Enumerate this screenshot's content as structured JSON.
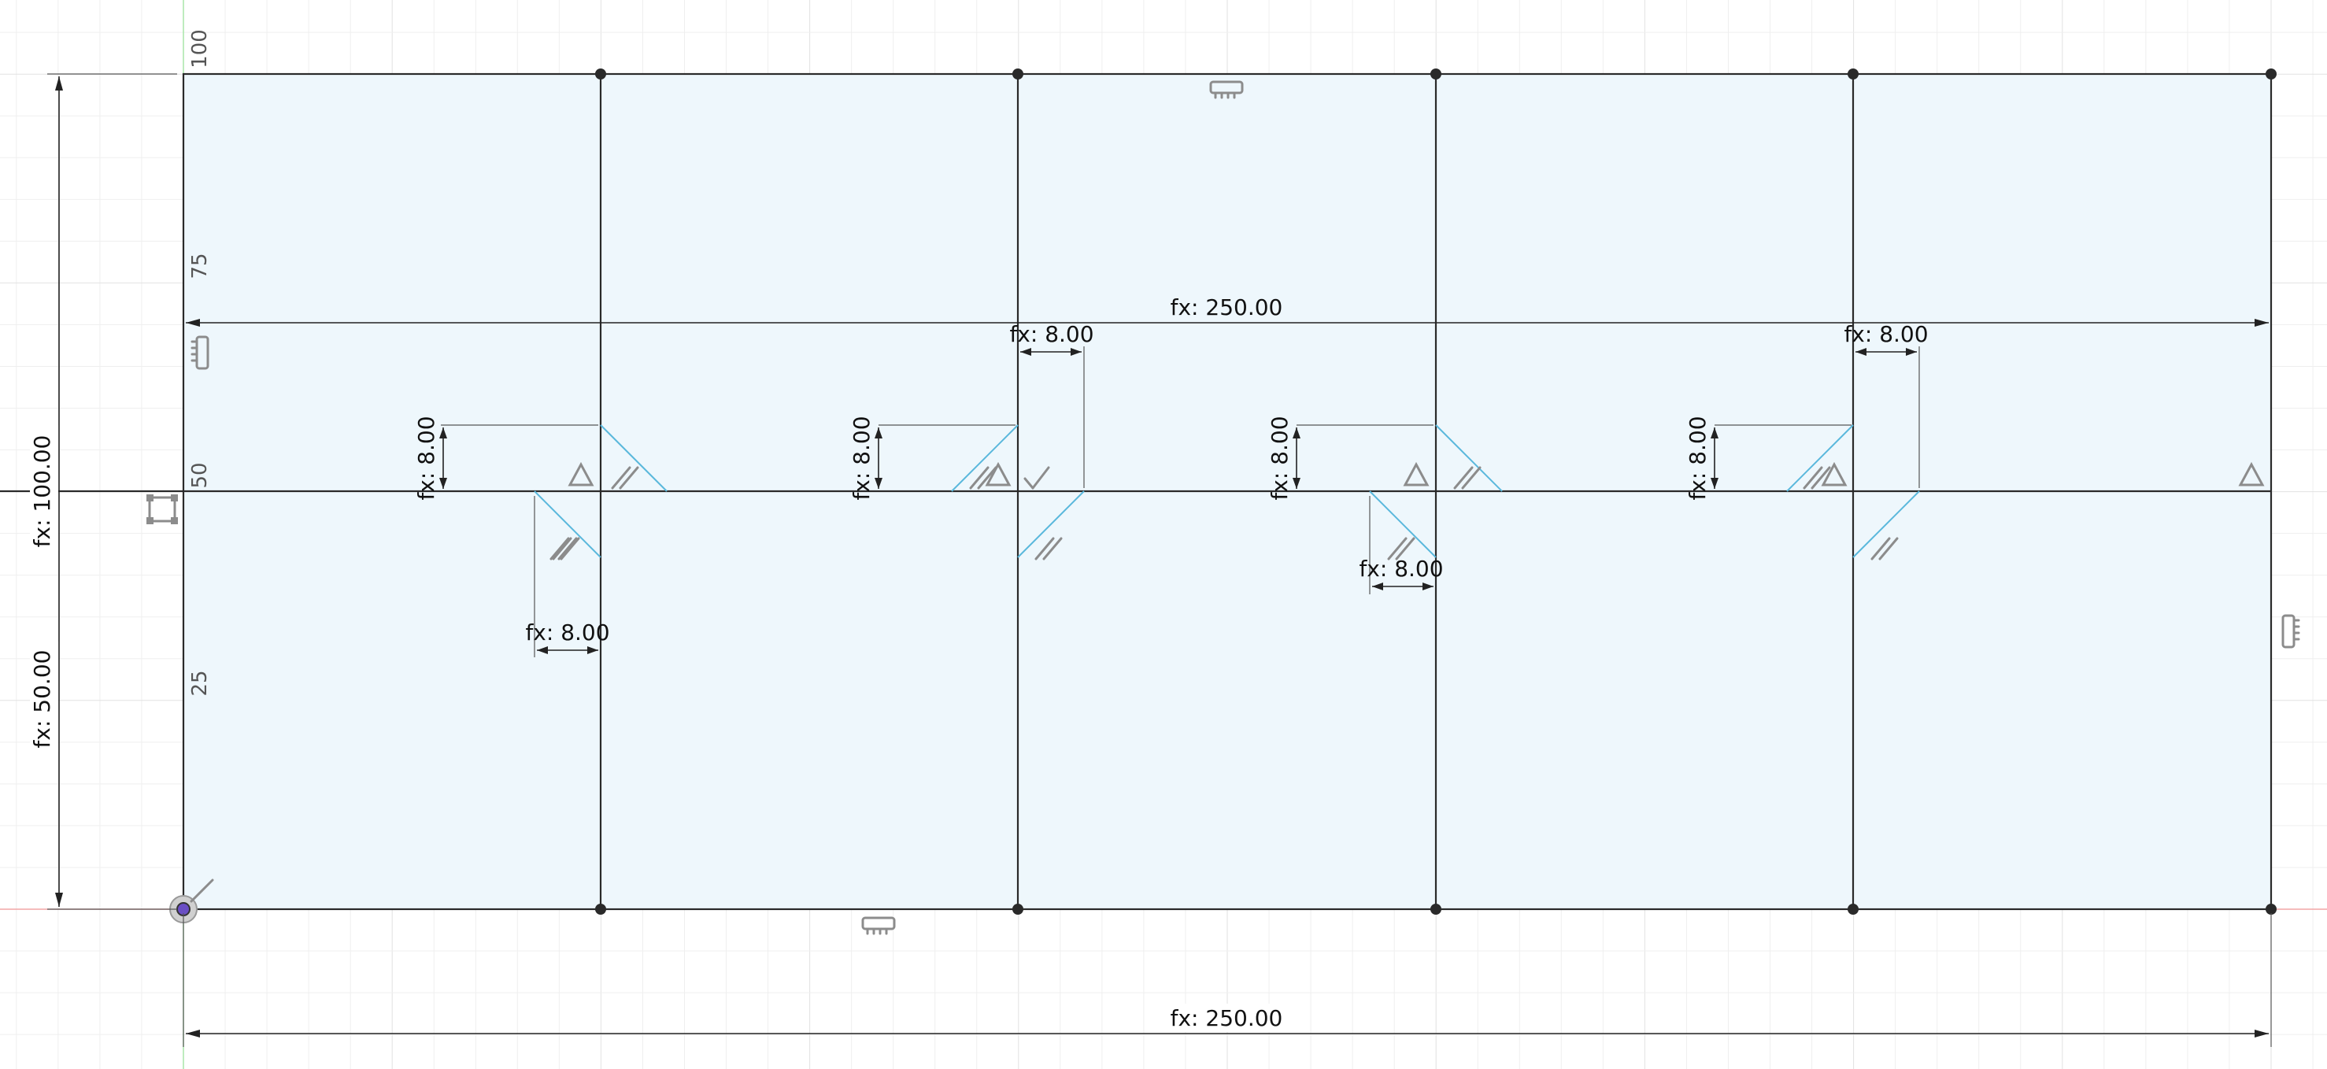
{
  "sketch": {
    "axis_numbers": [
      "100",
      "75",
      "50",
      "25"
    ],
    "dimensions": {
      "overall_width_top": "fx: 250.00",
      "overall_width_bottom": "fx: 250.00",
      "overall_height": "fx: 100.00",
      "mid_height": "fx: 50.00",
      "offset_h_1": "fx: 8.00",
      "offset_h_2": "fx: 8.00",
      "offset_h_3": "fx: 8.00",
      "offset_h_4": "fx: 8.00",
      "offset_v_1": "fx: 8.00",
      "offset_v_2": "fx: 8.00",
      "offset_v_3": "fx: 8.00",
      "offset_v_4": "fx: 8.00"
    },
    "colors": {
      "fill": "#eef7fc",
      "edge": "#2a2a2a",
      "construction": "#5ab8dc",
      "constraint_glyph": "#8c8c8c",
      "grid_minor": "#efefef",
      "grid_major": "#e2e2e2",
      "x_axis": "#f2a6a6",
      "y_axis": "#a8e6a8"
    },
    "icons": {
      "origin": "origin-point-icon",
      "horizontal": "horizontal-constraint-icon",
      "vertical": "vertical-constraint-icon",
      "parallel": "parallel-constraint-icon",
      "perpendicular": "perpendicular-constraint-icon",
      "equal": "equal-constraint-icon",
      "coincident": "coincident-constraint-icon",
      "symmetry": "symmetry-constraint-icon",
      "fix": "fix-constraint-icon"
    }
  }
}
